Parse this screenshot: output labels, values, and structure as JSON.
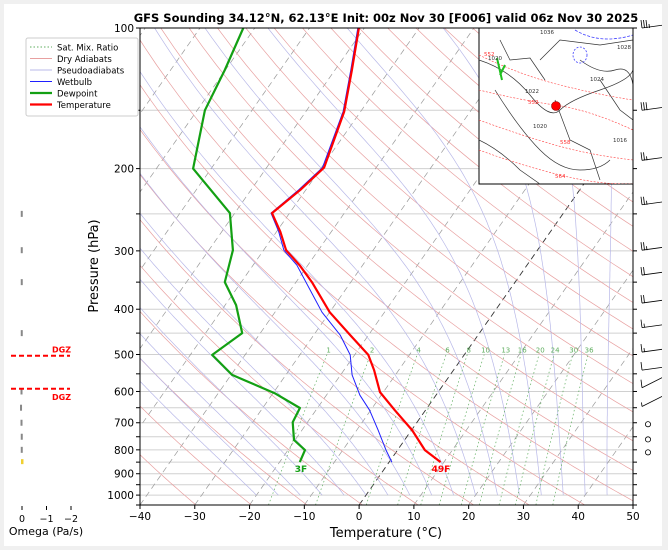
{
  "chart_data": {
    "type": "line",
    "title": "GFS Sounding 34.12°N, 62.13°E Init: 00z Nov 30 [F006] valid 06z Nov 30 2025",
    "xlabel": "Temperature (°C)",
    "ylabel": "Pressure (hPa)",
    "xlim": [
      -40,
      50
    ],
    "ylim": [
      1050,
      100
    ],
    "xticks": [
      "−40",
      "−30",
      "−20",
      "−10",
      "0",
      "10",
      "20",
      "30",
      "40",
      "50"
    ],
    "xtick_values": [
      -40,
      -30,
      -20,
      -10,
      0,
      10,
      20,
      30,
      40,
      50
    ],
    "yticks": [
      "100",
      "200",
      "300",
      "400",
      "500",
      "600",
      "700",
      "800",
      "900",
      "1000"
    ],
    "ytick_values": [
      100,
      200,
      300,
      400,
      500,
      600,
      700,
      800,
      900,
      1000
    ],
    "grid": true,
    "legend_position": "top-left",
    "legend": [
      {
        "label": "Sat. Mix. Ratio",
        "color": "#5fae5f",
        "style": "dotted"
      },
      {
        "label": "Dry Adiabats",
        "color": "#e8a0a0",
        "style": "solid"
      },
      {
        "label": "Pseudoadiabats",
        "color": "#b8b8e8",
        "style": "solid"
      },
      {
        "label": "Wetbulb",
        "color": "#1f1fff",
        "style": "solid"
      },
      {
        "label": "Dewpoint",
        "color": "#13a013",
        "style": "solid"
      },
      {
        "label": "Temperature",
        "color": "#ff0000",
        "style": "solid"
      }
    ],
    "series": [
      {
        "name": "Temperature",
        "color": "#ff0000",
        "p": [
          850,
          801,
          726,
          658,
          602,
          540,
          501,
          454,
          406,
          350,
          322,
          299,
          273,
          249,
          222,
          199,
          151,
          123,
          100
        ],
        "t": [
          9.4,
          5.0,
          0.1,
          -5.6,
          -10.6,
          -14.5,
          -17.5,
          -23.4,
          -30.0,
          -37.1,
          -41.5,
          -45.9,
          -49.3,
          -53.2,
          -51.0,
          -49.5,
          -53.0,
          -56.9,
          -61.0
        ]
      },
      {
        "name": "Dewpoint",
        "color": "#13a013",
        "p": [
          850,
          801,
          762,
          698,
          651,
          605,
          553,
          501,
          450,
          392,
          350,
          299,
          249,
          200,
          150,
          123,
          100
        ],
        "t": [
          -16.3,
          -16.9,
          -20.2,
          -22.7,
          -23.2,
          -29.7,
          -39.8,
          -46.0,
          -43.3,
          -48.0,
          -53.0,
          -55.6,
          -60.9,
          -73.3,
          -78.6,
          -80.1,
          -82.1
        ]
      },
      {
        "name": "Wetbulb",
        "color": "#1f1fff",
        "p": [
          850,
          801,
          726,
          658,
          611,
          553,
          501,
          454,
          406,
          364,
          322,
          299,
          273,
          249,
          222,
          199,
          151,
          123,
          100
        ],
        "t": [
          0.5,
          -2.1,
          -6.1,
          -10.2,
          -13.9,
          -17.9,
          -20.8,
          -25.2,
          -31.4,
          -36.4,
          -42.0,
          -46.3,
          -49.6,
          -53.4,
          -51.3,
          -49.8,
          -53.2,
          -57.1,
          -61.2
        ]
      }
    ],
    "mixing_ratio_labels": [
      "1",
      "2",
      "4",
      "6",
      "8",
      "10",
      "13",
      "16",
      "20",
      "24",
      "30",
      "36"
    ],
    "mixing_ratio_values": [
      1,
      2,
      4,
      6,
      8,
      10,
      13,
      16,
      20,
      24,
      30,
      36
    ],
    "surface_labels": {
      "temperature": "49F",
      "dewpoint": "3F"
    },
    "wind_barbs": [
      {
        "p": 100,
        "speed_kt": 35,
        "dir": 280
      },
      {
        "p": 150,
        "speed_kt": 30,
        "dir": 275
      },
      {
        "p": 192,
        "speed_kt": 25,
        "dir": 270
      },
      {
        "p": 239,
        "speed_kt": 25,
        "dir": 270
      },
      {
        "p": 299,
        "speed_kt": 25,
        "dir": 270
      },
      {
        "p": 338,
        "speed_kt": 20,
        "dir": 270
      },
      {
        "p": 388,
        "speed_kt": 20,
        "dir": 275
      },
      {
        "p": 438,
        "speed_kt": 15,
        "dir": 280
      },
      {
        "p": 494,
        "speed_kt": 15,
        "dir": 285
      },
      {
        "p": 540,
        "speed_kt": 10,
        "dir": 290
      },
      {
        "p": 589,
        "speed_kt": 10,
        "dir": 300
      },
      {
        "p": 646,
        "speed_kt": 5,
        "dir": 320
      },
      {
        "p": 705,
        "speed_kt": 0,
        "dir": 0
      },
      {
        "p": 760,
        "speed_kt": 0,
        "dir": 0
      },
      {
        "p": 810,
        "speed_kt": 0,
        "dir": 0
      }
    ],
    "omega_panel": {
      "xlabel": "Omega (Pa/s)",
      "xticks": [
        "0",
        "−1",
        "−2"
      ],
      "xtick_values": [
        0,
        -1,
        -2
      ],
      "dgz_label": "DGZ",
      "dgz_bounds_hpa": [
        503,
        592
      ],
      "p": [
        250,
        299,
        350,
        450,
        600,
        650,
        700,
        750,
        800,
        850
      ],
      "omega": [
        0.01,
        0.01,
        0.01,
        0.01,
        0.02,
        0.04,
        0.02,
        0.01,
        0.01,
        -0.06
      ]
    }
  },
  "inset_map": {
    "labels": [
      "1036",
      "1028",
      "1020",
      "552",
      "1024",
      "1022",
      "1020",
      "558",
      "564",
      "1016",
      "552"
    ],
    "point_color": "#ff0000"
  }
}
